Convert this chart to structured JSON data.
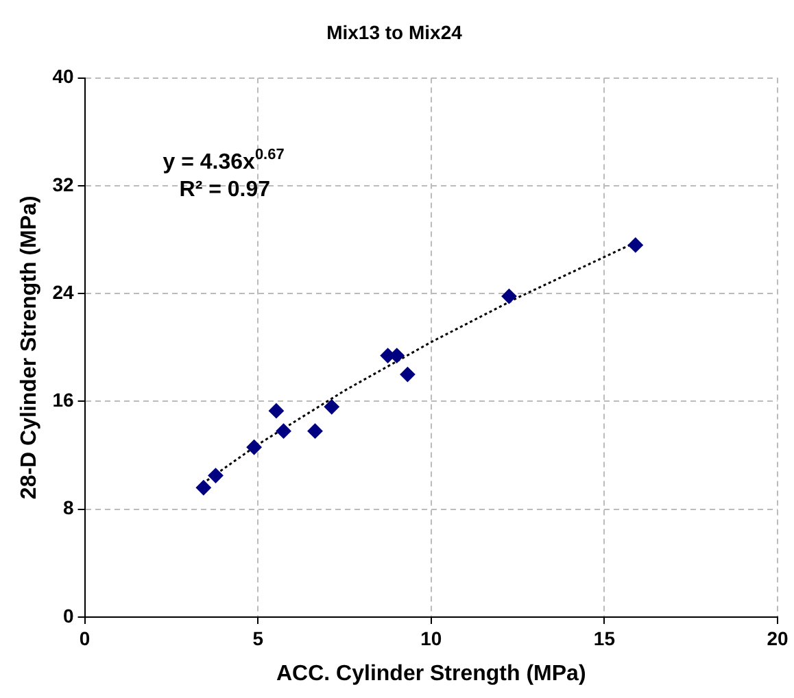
{
  "chart_data": {
    "type": "scatter",
    "title": "Mix13 to Mix24",
    "xlabel": "ACC. Cylinder Strength (MPa)",
    "ylabel": "28-D Cylinder Strength (MPa)",
    "xlim": [
      0,
      20
    ],
    "xticks": [
      0,
      5,
      10,
      15,
      20
    ],
    "ylim": [
      0,
      40
    ],
    "yticks": [
      0,
      8,
      16,
      24,
      32,
      40
    ],
    "grid": true,
    "legend": false,
    "marker": "diamond",
    "series": [
      {
        "color": "#000080",
        "x": [
          3.43,
          3.78,
          4.89,
          5.53,
          5.74,
          6.65,
          7.13,
          8.75,
          9.01,
          9.32,
          12.25,
          15.9
        ],
        "values": [
          9.6,
          10.5,
          12.6,
          15.3,
          13.8,
          13.8,
          15.6,
          19.4,
          19.4,
          18.0,
          23.8,
          27.6
        ]
      },
      {
        "type": "line",
        "color": "#000000",
        "line_style": "dotted",
        "marker": "none",
        "x": [
          3.4,
          5,
          7.5,
          10,
          12.5,
          15.9
        ],
        "values": [
          9.9,
          12.8,
          16.8,
          20.4,
          23.7,
          27.8
        ]
      }
    ],
    "annotations": [
      "y = 4.36x$^{0.67}$",
      "R² = 0.97"
    ]
  }
}
